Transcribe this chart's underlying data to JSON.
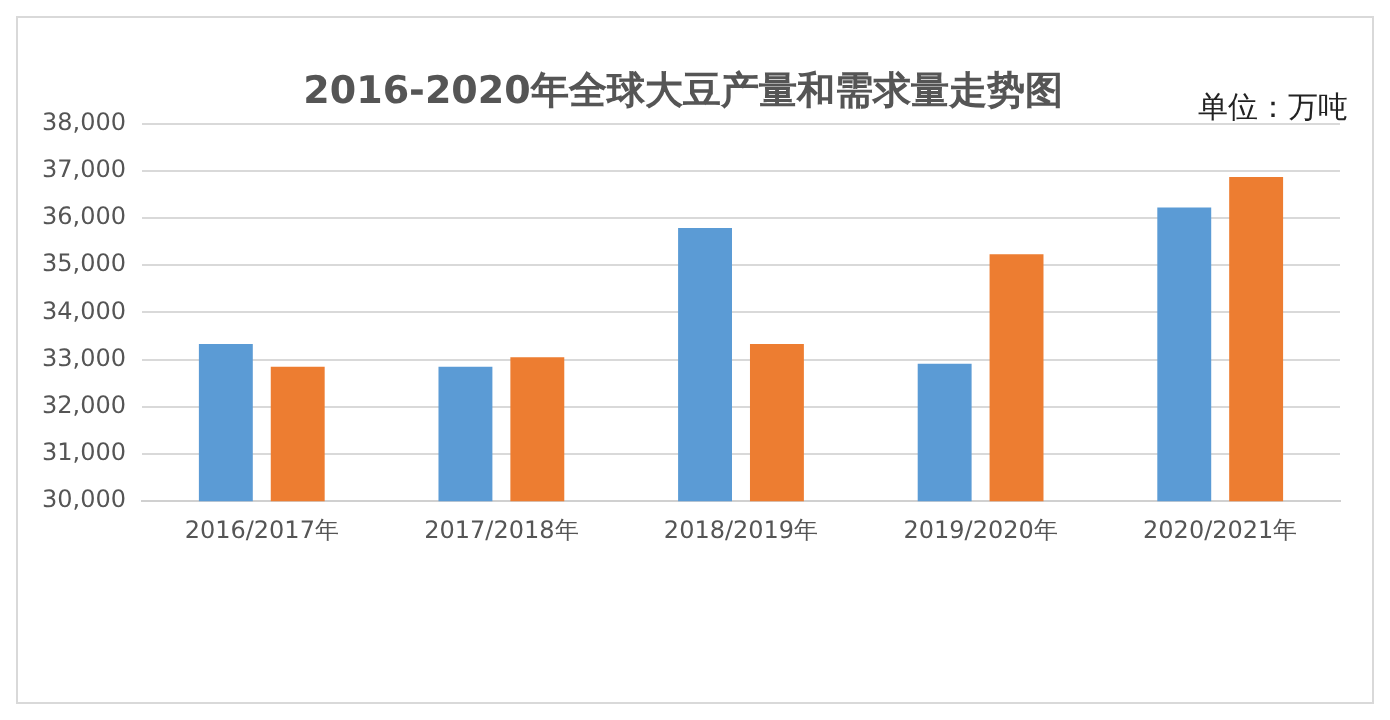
{
  "chart_data": {
    "type": "bar",
    "title": "2016-2020年全球大豆产量和需求量走势图",
    "annotations": [
      "单位：万吨"
    ],
    "categories": [
      "2016/2017年",
      "2017/2018年",
      "2018/2019年",
      "2019/2020年",
      "2020/2021年"
    ],
    "series": [
      {
        "color": "#5b9bd5",
        "values": [
          33330,
          32850,
          35790,
          32910,
          36220
        ]
      },
      {
        "color": "#ed7d31",
        "values": [
          32850,
          33050,
          33330,
          35230,
          36870
        ]
      }
    ],
    "ylim": [
      30000,
      38000
    ],
    "yticks": [
      {
        "value": 30000,
        "label": "30,000"
      },
      {
        "value": 31000,
        "label": "31,000"
      },
      {
        "value": 32000,
        "label": "32,000"
      },
      {
        "value": 33000,
        "label": "33,000"
      },
      {
        "value": 34000,
        "label": "34,000"
      },
      {
        "value": 35000,
        "label": "35,000"
      },
      {
        "value": 36000,
        "label": "36,000"
      },
      {
        "value": 37000,
        "label": "37,000"
      },
      {
        "value": 38000,
        "label": "38,000"
      }
    ],
    "grid": "y",
    "legend": false
  }
}
